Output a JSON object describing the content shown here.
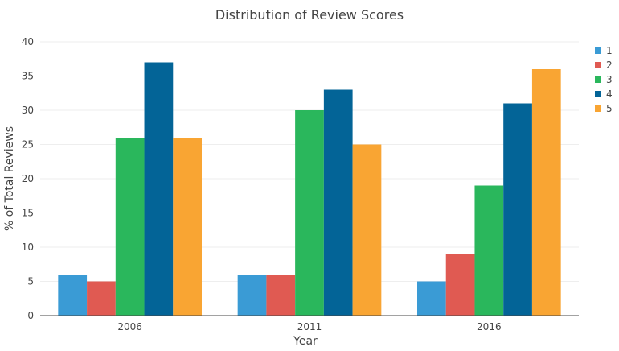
{
  "chart_data": {
    "type": "bar",
    "title": "Distribution of Review Scores",
    "xlabel": "Year",
    "ylabel": "% of Total Reviews",
    "categories": [
      "2006",
      "2011",
      "2016"
    ],
    "series": [
      {
        "name": "1",
        "color": "#3a9bd5",
        "values": [
          6,
          6,
          5
        ]
      },
      {
        "name": "2",
        "color": "#e05a52",
        "values": [
          5,
          6,
          9
        ]
      },
      {
        "name": "3",
        "color": "#2ab75c",
        "values": [
          26,
          30,
          19
        ]
      },
      {
        "name": "4",
        "color": "#036497",
        "values": [
          37,
          33,
          31
        ]
      },
      {
        "name": "5",
        "color": "#f9a533",
        "values": [
          26,
          25,
          36
        ]
      }
    ],
    "ylim": [
      0,
      40
    ],
    "yticks": [
      0,
      5,
      10,
      15,
      20,
      25,
      30,
      35,
      40
    ],
    "grid": true,
    "legend": "right"
  }
}
